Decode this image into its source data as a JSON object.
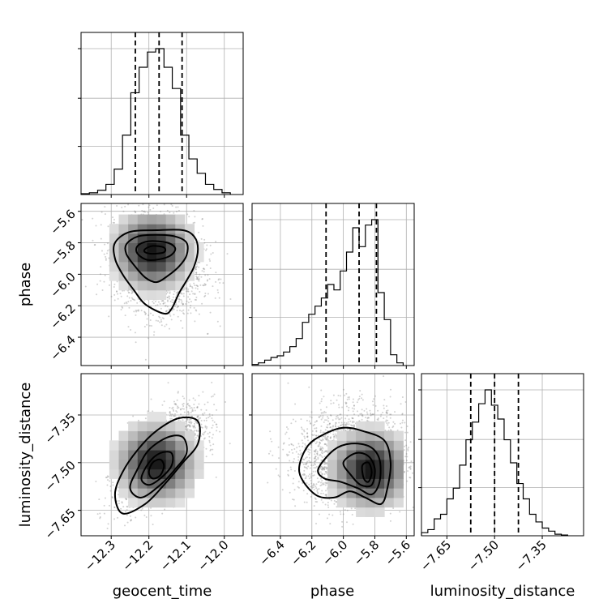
{
  "chart_data": {
    "type": "corner",
    "parameters": [
      "geocent_time",
      "phase",
      "luminosity_distance"
    ],
    "axis_labels": {
      "x": [
        "geocent_time",
        "phase",
        "luminosity_distance"
      ],
      "y": [
        "phase",
        "luminosity_distance"
      ]
    },
    "ranges": {
      "geocent_time": [
        -12.38,
        -11.95
      ],
      "phase": [
        -6.58,
        -5.55
      ],
      "luminosity_distance": [
        -7.73,
        -7.22
      ]
    },
    "ticks": {
      "geocent_time": {
        "values": [
          -12.3,
          -12.2,
          -12.1,
          -12.0
        ],
        "labels": [
          "−12.3",
          "−12.2",
          "−12.1",
          "−12.0"
        ]
      },
      "phase": {
        "values": [
          -6.4,
          -6.2,
          -6.0,
          -5.8,
          -5.6
        ],
        "labels": [
          "−6.4",
          "−6.2",
          "−6.0",
          "−5.8",
          "−5.6"
        ]
      },
      "luminosity_distance": {
        "values": [
          -7.65,
          -7.5,
          -7.35
        ],
        "labels": [
          "−7.65",
          "−7.50",
          "−7.35"
        ]
      }
    },
    "quantiles": {
      "geocent_time": [
        -12.236,
        -12.173,
        -12.112
      ],
      "phase": [
        -6.11,
        -5.9,
        -5.79
      ],
      "luminosity_distance": [
        -7.575,
        -7.5,
        -7.425
      ]
    },
    "histograms": {
      "geocent_time": {
        "bin_edges": [
          -12.38,
          -12.358,
          -12.336,
          -12.314,
          -12.292,
          -12.27,
          -12.248,
          -12.226,
          -12.204,
          -12.182,
          -12.16,
          -12.138,
          -12.116,
          -12.094,
          -12.072,
          -12.05,
          -12.028,
          -12.006,
          -11.984
        ],
        "counts": [
          1,
          2,
          5,
          12,
          30,
          70,
          120,
          150,
          168,
          172,
          150,
          125,
          70,
          42,
          25,
          12,
          6,
          2
        ]
      },
      "phase": {
        "bin_edges": [
          -6.58,
          -6.54,
          -6.5,
          -6.46,
          -6.42,
          -6.38,
          -6.34,
          -6.3,
          -6.26,
          -6.22,
          -6.18,
          -6.14,
          -6.1,
          -6.06,
          -6.02,
          -5.98,
          -5.94,
          -5.9,
          -5.86,
          -5.82,
          -5.78,
          -5.74,
          -5.7,
          -5.66,
          -5.62
        ],
        "counts": [
          2,
          5,
          10,
          15,
          18,
          25,
          35,
          50,
          80,
          95,
          110,
          125,
          150,
          140,
          175,
          210,
          255,
          220,
          260,
          270,
          135,
          85,
          20,
          5
        ]
      },
      "luminosity_distance": {
        "bin_edges": [
          -7.73,
          -7.71,
          -7.69,
          -7.67,
          -7.65,
          -7.63,
          -7.61,
          -7.59,
          -7.57,
          -7.55,
          -7.53,
          -7.51,
          -7.49,
          -7.47,
          -7.45,
          -7.43,
          -7.41,
          -7.39,
          -7.37,
          -7.35,
          -7.33,
          -7.31,
          -7.29,
          -7.27
        ],
        "counts": [
          4,
          8,
          22,
          28,
          48,
          62,
          92,
          125,
          148,
          172,
          190,
          170,
          152,
          125,
          95,
          68,
          48,
          28,
          18,
          10,
          6,
          2,
          1
        ]
      }
    },
    "hist_grid_fractions": [
      0.33,
      0.66,
      1.0
    ],
    "scatter": [
      {
        "x": "geocent_time",
        "y": "phase",
        "points": 2200,
        "center": [
          -12.175,
          -5.92
        ],
        "sd": [
          0.058,
          0.16
        ],
        "corr": -0.15
      },
      {
        "x": "geocent_time",
        "y": "luminosity_distance",
        "points": 2200,
        "center": [
          -12.17,
          -7.48
        ],
        "sd": [
          0.058,
          0.075
        ],
        "corr": 0.6
      },
      {
        "x": "phase",
        "y": "luminosity_distance",
        "points": 2200,
        "center": [
          -5.95,
          -7.48
        ],
        "sd": [
          0.17,
          0.075
        ],
        "corr": 0.05
      }
    ],
    "density_bins": [
      {
        "x": "geocent_time",
        "y": "phase",
        "x_edges": [
          -12.38,
          -12.355,
          -12.33,
          -12.305,
          -12.28,
          -12.255,
          -12.23,
          -12.205,
          -12.18,
          -12.155,
          -12.13,
          -12.105,
          -12.08,
          -12.055,
          -12.03,
          -12.005,
          -11.98
        ],
        "y_edges": [
          -6.58,
          -6.52,
          -6.46,
          -6.4,
          -6.34,
          -6.28,
          -6.22,
          -6.16,
          -6.1,
          -6.04,
          -5.98,
          -5.92,
          -5.86,
          -5.8,
          -5.74,
          -5.68,
          -5.62
        ],
        "peak": [
          -12.19,
          -5.85
        ]
      },
      {
        "x": "geocent_time",
        "y": "luminosity_distance",
        "x_edges": [
          -12.38,
          -12.355,
          -12.33,
          -12.305,
          -12.28,
          -12.255,
          -12.23,
          -12.205,
          -12.18,
          -12.155,
          -12.13,
          -12.105,
          -12.08,
          -12.055,
          -12.03,
          -12.005,
          -11.98
        ],
        "y_edges": [
          -7.73,
          -7.7,
          -7.67,
          -7.64,
          -7.61,
          -7.58,
          -7.55,
          -7.52,
          -7.49,
          -7.46,
          -7.43,
          -7.4,
          -7.37,
          -7.34,
          -7.31,
          -7.28,
          -7.25
        ],
        "peak": [
          -12.18,
          -7.5
        ]
      },
      {
        "x": "phase",
        "y": "luminosity_distance",
        "x_edges": [
          -6.58,
          -6.52,
          -6.46,
          -6.4,
          -6.34,
          -6.28,
          -6.22,
          -6.16,
          -6.1,
          -6.04,
          -5.98,
          -5.92,
          -5.86,
          -5.8,
          -5.74,
          -5.68,
          -5.62
        ],
        "y_edges": [
          -7.73,
          -7.7,
          -7.67,
          -7.64,
          -7.61,
          -7.58,
          -7.55,
          -7.52,
          -7.49,
          -7.46,
          -7.43,
          -7.4,
          -7.37,
          -7.34,
          -7.31,
          -7.28,
          -7.25
        ],
        "peak": [
          -5.83,
          -7.52
        ]
      }
    ],
    "contours": [
      {
        "x": "geocent_time",
        "y": "phase",
        "levels": [
          [
            [
              -12.29,
              -5.8
            ],
            [
              -12.25,
              -5.73
            ],
            [
              -12.18,
              -5.72
            ],
            [
              -12.11,
              -5.72
            ],
            [
              -12.08,
              -5.76
            ],
            [
              -12.07,
              -5.84
            ],
            [
              -12.08,
              -5.95
            ],
            [
              -12.1,
              -6.04
            ],
            [
              -12.12,
              -6.12
            ],
            [
              -12.14,
              -6.22
            ],
            [
              -12.16,
              -6.25
            ],
            [
              -12.21,
              -6.19
            ],
            [
              -12.24,
              -6.1
            ],
            [
              -12.27,
              -6.0
            ],
            [
              -12.29,
              -5.9
            ]
          ],
          [
            [
              -12.26,
              -5.81
            ],
            [
              -12.23,
              -5.76
            ],
            [
              -12.18,
              -5.75
            ],
            [
              -12.13,
              -5.76
            ],
            [
              -12.1,
              -5.8
            ],
            [
              -12.1,
              -5.88
            ],
            [
              -12.12,
              -5.95
            ],
            [
              -12.15,
              -6.01
            ],
            [
              -12.18,
              -6.05
            ],
            [
              -12.21,
              -6.02
            ],
            [
              -12.24,
              -5.94
            ],
            [
              -12.26,
              -5.87
            ]
          ],
          [
            [
              -12.23,
              -5.82
            ],
            [
              -12.2,
              -5.79
            ],
            [
              -12.15,
              -5.8
            ],
            [
              -12.13,
              -5.84
            ],
            [
              -12.15,
              -5.89
            ],
            [
              -12.2,
              -5.91
            ],
            [
              -12.23,
              -5.87
            ]
          ],
          [
            [
              -12.21,
              -5.84
            ],
            [
              -12.19,
              -5.82
            ],
            [
              -12.16,
              -5.83
            ],
            [
              -12.16,
              -5.86
            ],
            [
              -12.19,
              -5.87
            ],
            [
              -12.21,
              -5.86
            ]
          ]
        ]
      },
      {
        "x": "geocent_time",
        "y": "luminosity_distance",
        "levels": [
          [
            [
              -12.29,
              -7.6
            ],
            [
              -12.27,
              -7.53
            ],
            [
              -12.23,
              -7.46
            ],
            [
              -12.18,
              -7.4
            ],
            [
              -12.12,
              -7.36
            ],
            [
              -12.07,
              -7.37
            ],
            [
              -12.07,
              -7.44
            ],
            [
              -12.11,
              -7.5
            ],
            [
              -12.16,
              -7.57
            ],
            [
              -12.21,
              -7.63
            ],
            [
              -12.27,
              -7.66
            ]
          ],
          [
            [
              -12.25,
              -7.58
            ],
            [
              -12.23,
              -7.52
            ],
            [
              -12.2,
              -7.46
            ],
            [
              -12.15,
              -7.42
            ],
            [
              -12.11,
              -7.42
            ],
            [
              -12.1,
              -7.47
            ],
            [
              -12.13,
              -7.52
            ],
            [
              -12.17,
              -7.57
            ],
            [
              -12.22,
              -7.61
            ]
          ],
          [
            [
              -12.22,
              -7.55
            ],
            [
              -12.2,
              -7.5
            ],
            [
              -12.17,
              -7.47
            ],
            [
              -12.14,
              -7.47
            ],
            [
              -12.14,
              -7.51
            ],
            [
              -12.17,
              -7.55
            ],
            [
              -12.2,
              -7.57
            ]
          ],
          [
            [
              -12.2,
              -7.53
            ],
            [
              -12.19,
              -7.5
            ],
            [
              -12.17,
              -7.49
            ],
            [
              -12.16,
              -7.51
            ],
            [
              -12.17,
              -7.54
            ],
            [
              -12.19,
              -7.55
            ]
          ]
        ]
      },
      {
        "x": "phase",
        "y": "luminosity_distance",
        "levels": [
          [
            [
              -6.28,
              -7.53
            ],
            [
              -6.23,
              -7.45
            ],
            [
              -6.12,
              -7.41
            ],
            [
              -6.0,
              -7.39
            ],
            [
              -5.88,
              -7.4
            ],
            [
              -5.74,
              -7.43
            ],
            [
              -5.7,
              -7.5
            ],
            [
              -5.72,
              -7.58
            ],
            [
              -5.76,
              -7.63
            ],
            [
              -5.86,
              -7.61
            ],
            [
              -5.96,
              -7.59
            ],
            [
              -6.06,
              -7.61
            ],
            [
              -6.18,
              -7.6
            ]
          ],
          [
            [
              -6.16,
              -7.52
            ],
            [
              -6.06,
              -7.46
            ],
            [
              -5.95,
              -7.44
            ],
            [
              -5.83,
              -7.45
            ],
            [
              -5.77,
              -7.49
            ],
            [
              -5.77,
              -7.56
            ],
            [
              -5.82,
              -7.6
            ],
            [
              -5.91,
              -7.58
            ],
            [
              -6.02,
              -7.56
            ],
            [
              -6.12,
              -7.55
            ]
          ],
          [
            [
              -6.0,
              -7.5
            ],
            [
              -5.92,
              -7.47
            ],
            [
              -5.84,
              -7.48
            ],
            [
              -5.8,
              -7.52
            ],
            [
              -5.82,
              -7.57
            ],
            [
              -5.89,
              -7.57
            ],
            [
              -5.95,
              -7.54
            ]
          ],
          [
            [
              -5.88,
              -7.51
            ],
            [
              -5.84,
              -7.5
            ],
            [
              -5.82,
              -7.53
            ],
            [
              -5.84,
              -7.56
            ],
            [
              -5.87,
              -7.55
            ]
          ]
        ]
      }
    ],
    "grid": true,
    "colors": {
      "ink": "#000000",
      "grid": "#b0b0b0",
      "scatter": "#7f7f7f",
      "background": "#ffffff"
    }
  }
}
